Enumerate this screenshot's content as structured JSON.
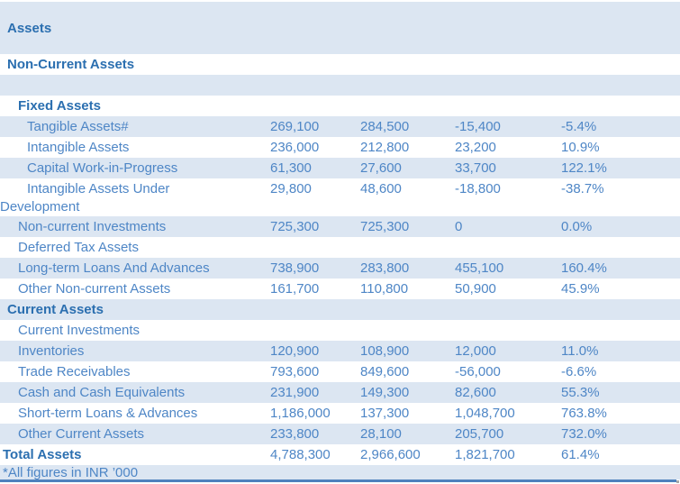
{
  "colors": {
    "band": "#dce6f2",
    "regular_text": "#4e86c6",
    "heading_text": "#2b6fb0",
    "bottom_rule": "#4f81bd"
  },
  "rows": [
    {
      "label": "Assets",
      "c1": "",
      "c2": "",
      "c3": "",
      "c4": ""
    },
    {
      "label": "Non-Current Assets",
      "c1": "",
      "c2": "",
      "c3": "",
      "c4": ""
    },
    {
      "label": "",
      "c1": "",
      "c2": "",
      "c3": "",
      "c4": ""
    },
    {
      "label": "Fixed Assets",
      "c1": "",
      "c2": "",
      "c3": "",
      "c4": ""
    },
    {
      "label": "Tangible Assets#",
      "c1": "269,100",
      "c2": "284,500",
      "c3": "-15,400",
      "c4": "-5.4%"
    },
    {
      "label": "Intangible Assets",
      "c1": "236,000",
      "c2": "212,800",
      "c3": "23,200",
      "c4": "10.9%"
    },
    {
      "label": "Capital Work-in-Progress",
      "c1": "61,300",
      "c2": "27,600",
      "c3": "33,700",
      "c4": "122.1%"
    },
    {
      "label": "Intangible Assets Under Development",
      "c1": "29,800",
      "c2": "48,600",
      "c3": "-18,800",
      "c4": "-38.7%"
    },
    {
      "label": "Non-current Investments",
      "c1": "725,300",
      "c2": "725,300",
      "c3": "0",
      "c4": "0.0%"
    },
    {
      "label": "Deferred Tax Assets",
      "c1": "",
      "c2": "",
      "c3": "",
      "c4": ""
    },
    {
      "label": "Long-term Loans And Advances",
      "c1": "738,900",
      "c2": "283,800",
      "c3": "455,100",
      "c4": "160.4%"
    },
    {
      "label": "Other Non-current Assets",
      "c1": "161,700",
      "c2": "110,800",
      "c3": "50,900",
      "c4": "45.9%"
    },
    {
      "label": "Current Assets",
      "c1": "",
      "c2": "",
      "c3": "",
      "c4": ""
    },
    {
      "label": "Current Investments",
      "c1": "",
      "c2": "",
      "c3": "",
      "c4": ""
    },
    {
      "label": "Inventories",
      "c1": "120,900",
      "c2": "108,900",
      "c3": "12,000",
      "c4": "11.0%"
    },
    {
      "label": "Trade Receivables",
      "c1": "793,600",
      "c2": "849,600",
      "c3": "-56,000",
      "c4": "-6.6%"
    },
    {
      "label": "Cash and Cash Equivalents",
      "c1": "231,900",
      "c2": "149,300",
      "c3": "82,600",
      "c4": "55.3%"
    },
    {
      "label": "Short-term Loans & Advances",
      "c1": "1,186,000",
      "c2": "137,300",
      "c3": "1,048,700",
      "c4": "763.8%"
    },
    {
      "label": "Other Current Assets",
      "c1": "233,800",
      "c2": "28,100",
      "c3": "205,700",
      "c4": "732.0%"
    },
    {
      "label": "Total Assets",
      "c1": "4,788,300",
      "c2": "2,966,600",
      "c3": "1,821,700",
      "c4": "61.4%"
    }
  ],
  "footer": {
    "note": "*All figures in INR ’000"
  }
}
